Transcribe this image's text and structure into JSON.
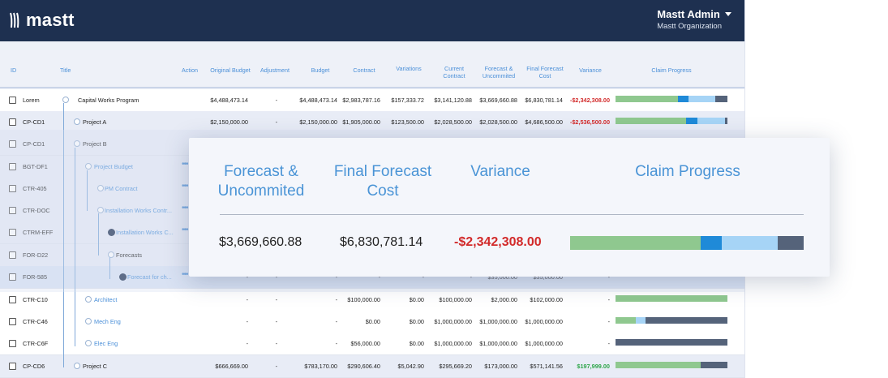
{
  "app": {
    "logo": "mastt",
    "user_name": "Mastt Admin",
    "organization": "Mastt Organization"
  },
  "colors": {
    "header_bg": "#1e3050",
    "accent": "#4a8fd8",
    "negative": "#d22a2a",
    "positive": "#2ea64a",
    "bar_green": "#8fc88f",
    "bar_blue": "#1f8ad8",
    "bar_light": "#a6d4f6",
    "bar_dark": "#55637a"
  },
  "columns": {
    "id": "ID",
    "title": "Title",
    "action": "Action",
    "original_budget": "Original Budget",
    "adjustment": "Adjustment",
    "budget": "Budget",
    "contract": "Contract",
    "variations": "Variations",
    "current_contract": "Current Contract",
    "forecast_uncommited": "Forecast & Uncommited",
    "final_forecast_cost": "Final Forecast Cost",
    "variance": "Variance",
    "claim_progress": "Claim Progress"
  },
  "rows": [
    {
      "id": "Lorem",
      "title": "Capital Works Program",
      "original_budget": "$4,488,473.14",
      "adjustment": "-",
      "budget": "$4,488,473.14",
      "contract": "$2,983,787.16",
      "variations": "$157,333.72",
      "current_contract": "$3,141,120.88",
      "forecast": "$3,669,660.88",
      "final_forecast": "$6,830,781.14",
      "variance": "-$2,342,308.00",
      "progress": [
        0.56,
        0.09,
        0.24,
        0.11
      ]
    },
    {
      "id": "CP-CD1",
      "title": "Project A",
      "original_budget": "$2,150,000.00",
      "adjustment": "-",
      "budget": "$2,150,000.00",
      "contract": "$1,905,000.00",
      "variations": "$123,500.00",
      "current_contract": "$2,028,500.00",
      "forecast": "$2,028,500.00",
      "final_forecast": "$4,686,500.00",
      "variance": "-$2,536,500.00",
      "progress": [
        0.63,
        0.1,
        0.25,
        0.02
      ]
    },
    {
      "id": "CP-CD1",
      "title": "Project B"
    },
    {
      "id": "BGT-DF1",
      "title": "Project Budget"
    },
    {
      "id": "CTR-405",
      "title": "PM Contract"
    },
    {
      "id": "CTR-DOC",
      "title": "Installation Works Contr..."
    },
    {
      "id": "CTRM-EFF",
      "title": "Installation Works C..."
    },
    {
      "id": "FOR-D22",
      "title": "Forecasts"
    },
    {
      "id": "FOR-585",
      "title": "Forecast for ch...",
      "original_budget": "-",
      "adjustment": "-",
      "budget": "-",
      "contract": "-",
      "variations": "-",
      "current_contract": "-",
      "forecast": "$35,000.00",
      "final_forecast": "$35,000.00",
      "variance": "-"
    },
    {
      "id": "CTR-C10",
      "title": "Architect",
      "original_budget": "-",
      "adjustment": "-",
      "budget": "-",
      "contract": "$100,000.00",
      "variations": "$0.00",
      "current_contract": "$100,000.00",
      "forecast": "$2,000.00",
      "final_forecast": "$102,000.00",
      "variance": "-",
      "progress": [
        1.0,
        0,
        0,
        0
      ]
    },
    {
      "id": "CTR-C46",
      "title": "Mech Eng",
      "original_budget": "-",
      "adjustment": "-",
      "budget": "-",
      "contract": "$0.00",
      "variations": "$0.00",
      "current_contract": "$1,000,000.00",
      "forecast": "$1,000,000.00",
      "final_forecast": "$1,000,000.00",
      "variance": "-",
      "progress": [
        0.18,
        0,
        0.09,
        0.73
      ]
    },
    {
      "id": "CTR-C6F",
      "title": "Elec Eng",
      "original_budget": "-",
      "adjustment": "-",
      "budget": "-",
      "contract": "$56,000.00",
      "variations": "$0.00",
      "current_contract": "$1,000,000.00",
      "forecast": "$1,000,000.00",
      "final_forecast": "$1,000,000.00",
      "variance": "-",
      "progress": [
        0,
        0,
        0,
        1.0
      ]
    },
    {
      "id": "CP-CD6",
      "title": "Project C",
      "original_budget": "$666,669.00",
      "adjustment": "-",
      "budget": "$783,170.00",
      "contract": "$290,606.40",
      "variations": "$5,042.90",
      "current_contract": "$295,669.20",
      "forecast": "$173,000.00",
      "final_forecast": "$571,141.56",
      "variance": "$197,999.00",
      "progress": [
        0.76,
        0,
        0,
        0.24
      ]
    }
  ],
  "highlight": {
    "forecast_label": "Forecast & Uncommited",
    "final_forecast_label": "Final Forecast Cost",
    "variance_label": "Variance",
    "claim_progress_label": "Claim Progress",
    "forecast": "$3,669,660.88",
    "final_forecast": "$6,830,781.14",
    "variance": "-$2,342,308.00",
    "progress": [
      0.56,
      0.09,
      0.24,
      0.11
    ]
  }
}
